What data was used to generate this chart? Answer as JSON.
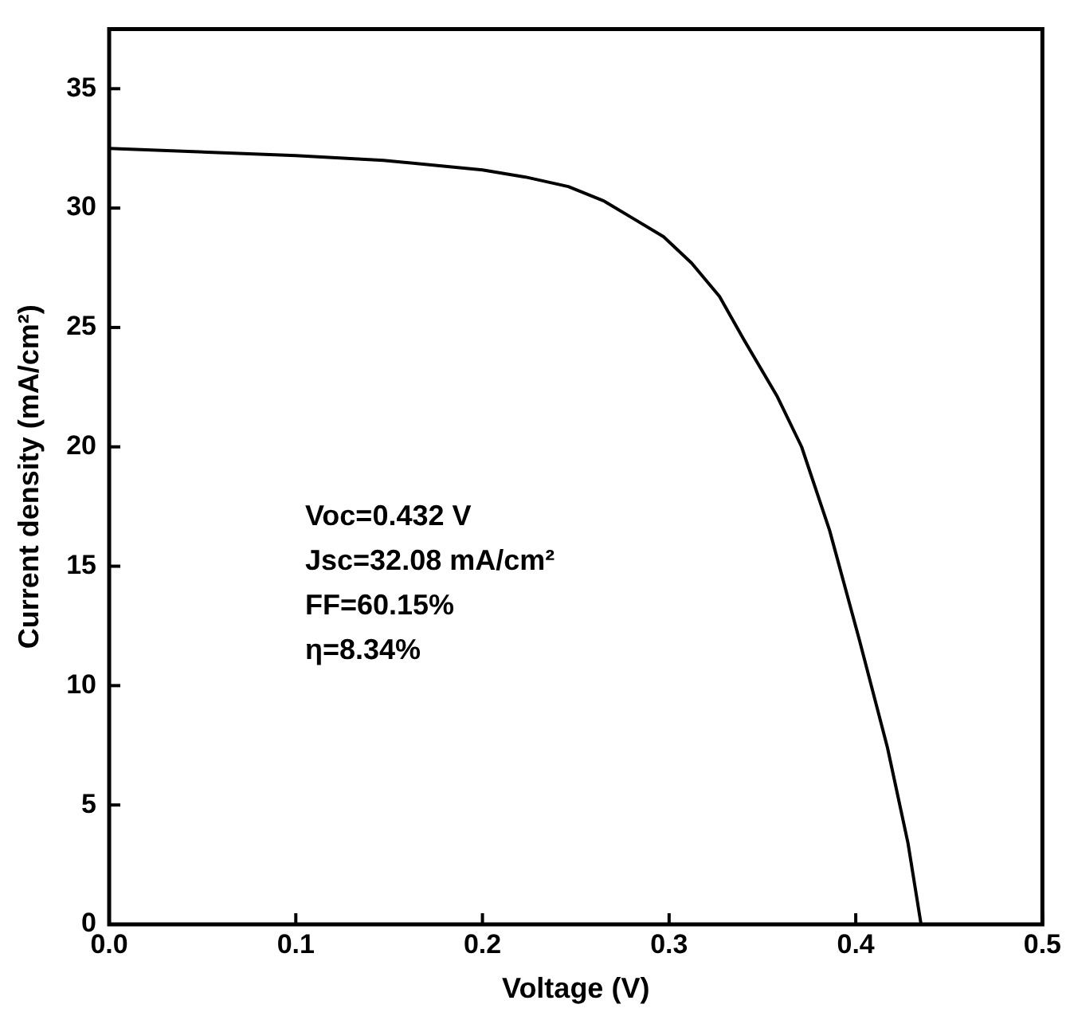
{
  "chart_data": {
    "type": "line",
    "xlabel": "Voltage (V)",
    "ylabel": "Current density (mA/cm²)",
    "x": [
      0,
      0.1,
      0.147,
      0.2,
      0.223,
      0.246,
      0.265,
      0.28,
      0.297,
      0.312,
      0.327,
      0.34,
      0.358,
      0.371,
      0.386,
      0.402,
      0.417,
      0.428,
      0.435
    ],
    "series": [
      {
        "color": "#000000",
        "values": [
          32.5,
          32.2,
          32.0,
          31.6,
          31.3,
          30.9,
          30.3,
          29.6,
          28.8,
          27.7,
          26.3,
          24.5,
          22.1,
          20.0,
          16.5,
          11.9,
          7.4,
          3.4,
          0
        ]
      }
    ],
    "xlim": [
      0,
      0.5
    ],
    "xticks": [
      {
        "value": 0,
        "label": "0.0"
      },
      0.1,
      0.2,
      0.3,
      0.4,
      0.5
    ],
    "ylim": [
      0,
      37.5
    ],
    "yticks": [
      0,
      5,
      10,
      15,
      20,
      25,
      30,
      35
    ],
    "annotations": [
      "Voc=0.432 V",
      "Jsc=32.08 mA/cm²",
      "FF=60.15%",
      "η=8.34%"
    ],
    "grid": false,
    "legend": false,
    "marker": "none",
    "line_style": "solid"
  }
}
